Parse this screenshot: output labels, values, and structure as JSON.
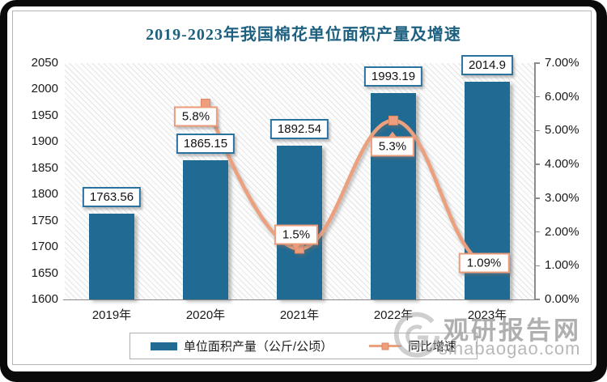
{
  "title": "2019-2023年我国棉花单位面积产量及增速",
  "colors": {
    "bar": "#206b93",
    "line": "#eca07e",
    "marker_fill": "#ee9d7d",
    "marker_border": "#dd8660",
    "value_box_border": "#2b729e",
    "growth_box_border": "#ec9b7b",
    "title_text": "#1e6080",
    "axis_text": "#1a1a1a",
    "axis_line": "#8c8c8c",
    "watermark_text": "#a9a9a9"
  },
  "chart_data": {
    "type": "bar",
    "title": "2019-2023年我国棉花单位面积产量及增速",
    "categories": [
      "2019年",
      "2020年",
      "2021年",
      "2022年",
      "2023年"
    ],
    "series": [
      {
        "name": "单位面积产量（公斤/公顷）",
        "type": "bar",
        "axis": "left",
        "values": [
          1763.56,
          1865.15,
          1892.54,
          1993.19,
          2014.9
        ],
        "labels": [
          "1763.56",
          "1865.15",
          "1892.54",
          "1993.19",
          "2014.9"
        ]
      },
      {
        "name": "同比增速",
        "type": "line",
        "axis": "right",
        "values": [
          null,
          5.8,
          1.5,
          5.3,
          1.09
        ],
        "labels": [
          null,
          "5.8%",
          "1.5%",
          "5.3%",
          "1.09%"
        ]
      }
    ],
    "left_axis": {
      "min": 1600,
      "max": 2050,
      "step": 50,
      "tick_labels": [
        "1600",
        "1650",
        "1700",
        "1750",
        "1800",
        "1850",
        "1900",
        "1950",
        "2000",
        "2050"
      ]
    },
    "right_axis": {
      "min": 0,
      "max": 7,
      "step": 1,
      "tick_labels": [
        "0.00%",
        "1.00%",
        "2.00%",
        "3.00%",
        "4.00%",
        "5.00%",
        "6.00%",
        "7.00%"
      ]
    },
    "legend_position": "bottom",
    "grid": false
  },
  "legend": {
    "production_label": "单位面积产量（公斤/公顷）",
    "growth_label": "同比增速"
  },
  "watermark": {
    "site_name": "观研报告网",
    "site_url": "sinabaogao.com"
  }
}
